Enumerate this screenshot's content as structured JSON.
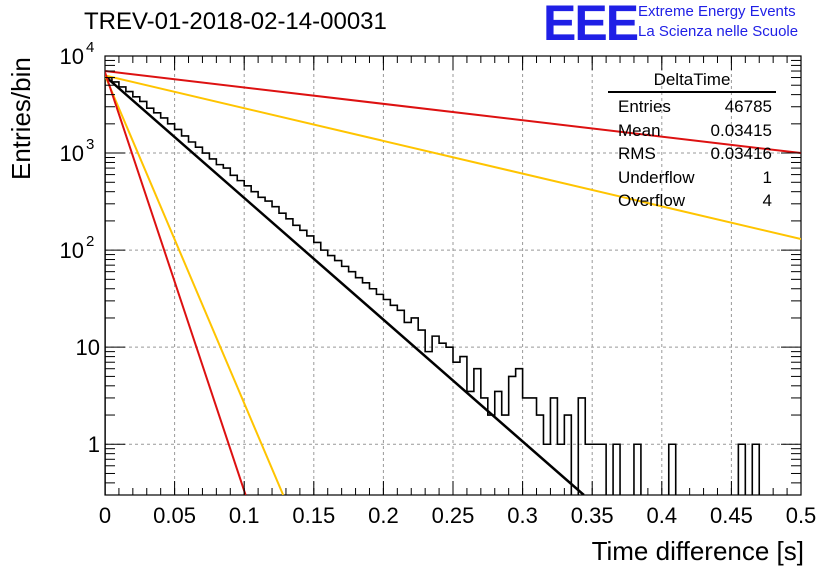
{
  "title": "TREV-01-2018-02-14-00031",
  "logo": {
    "mark": "EEE",
    "line1": "Extreme Energy Events",
    "line2": "La Scienza nelle Scuole",
    "color": "#1f1fe6"
  },
  "stats": {
    "title": "DeltaTime",
    "rows": [
      {
        "label": "Entries",
        "value": "46785"
      },
      {
        "label": "Mean",
        "value": "0.03415"
      },
      {
        "label": "RMS",
        "value": "0.03416"
      },
      {
        "label": "Underflow",
        "value": "1"
      },
      {
        "label": "Overflow",
        "value": "4"
      }
    ]
  },
  "chart_data": {
    "type": "line",
    "title": "TREV-01-2018-02-14-00031",
    "xlabel": "Time difference [s]",
    "ylabel": "Entries/bin",
    "xlim": [
      0,
      0.5
    ],
    "ylim": [
      0.3,
      10000
    ],
    "yscale": "log",
    "grid": true,
    "x_ticks": [
      0,
      0.05,
      0.1,
      0.15,
      0.2,
      0.25,
      0.3,
      0.35,
      0.4,
      0.45,
      0.5
    ],
    "x_tick_labels": [
      "0",
      "0.05",
      "0.1",
      "0.15",
      "0.2",
      "0.25",
      "0.3",
      "0.35",
      "0.4",
      "0.45",
      "0.5"
    ],
    "y_tick_labels": [
      {
        "value": 10000,
        "base": "10",
        "exp": "4"
      },
      {
        "value": 1000,
        "base": "10",
        "exp": "3"
      },
      {
        "value": 100,
        "base": "10",
        "exp": "2"
      },
      {
        "value": 10,
        "base": "10",
        "exp": ""
      },
      {
        "value": 1,
        "base": "1",
        "exp": ""
      }
    ],
    "histogram": {
      "color": "#000000",
      "bin_width": 0.005,
      "values": [
        6000,
        5400,
        4800,
        4300,
        3800,
        3400,
        2900,
        2600,
        2300,
        2000,
        1750,
        1500,
        1300,
        1150,
        1000,
        870,
        760,
        700,
        590,
        520,
        460,
        400,
        350,
        320,
        280,
        240,
        210,
        180,
        160,
        140,
        120,
        100,
        88,
        78,
        68,
        60,
        52,
        46,
        40,
        35,
        31,
        27,
        24,
        18,
        20,
        15,
        9,
        13,
        11,
        10,
        7,
        8,
        3.5,
        6,
        3,
        2,
        3.5,
        2,
        5,
        6,
        3,
        3,
        2,
        1,
        3,
        1,
        2,
        0,
        3,
        1,
        1,
        1,
        0,
        1,
        0,
        0,
        1,
        0,
        0,
        0,
        0,
        1,
        0,
        0,
        0,
        0,
        0,
        0,
        0,
        0,
        0,
        1,
        0,
        1,
        0,
        0,
        0,
        0,
        0,
        0
      ]
    },
    "series": [
      {
        "color": "#000000",
        "x": [
          0,
          0.344
        ],
        "y": [
          6200,
          0.3
        ]
      },
      {
        "color": "#dd1111",
        "x": [
          0,
          0.5
        ],
        "y": [
          7000,
          1000
        ]
      },
      {
        "color": "#ffc400",
        "x": [
          0,
          0.5
        ],
        "y": [
          6300,
          130
        ]
      },
      {
        "color": "#ffc400",
        "x": [
          0,
          0.128
        ],
        "y": [
          6300,
          0.3
        ]
      },
      {
        "color": "#dd1111",
        "x": [
          0,
          0.101
        ],
        "y": [
          6800,
          0.3
        ]
      }
    ]
  }
}
